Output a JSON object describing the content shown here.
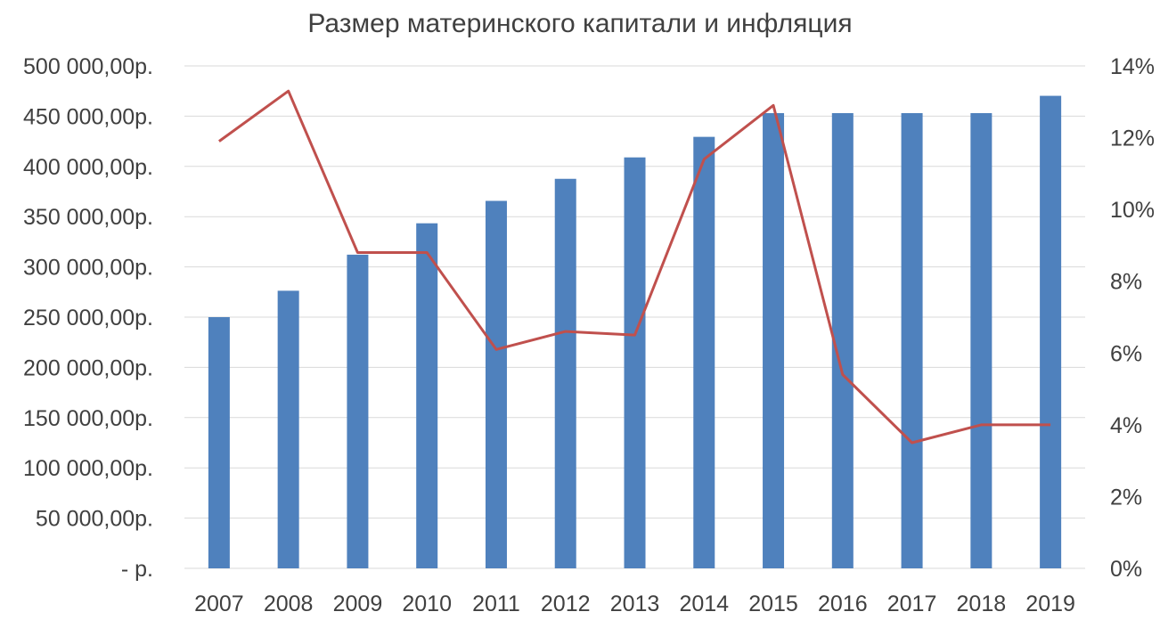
{
  "chart_data": {
    "type": "bar",
    "title": "Размер материнского капитали и инфляция",
    "categories": [
      "2007",
      "2008",
      "2009",
      "2010",
      "2011",
      "2012",
      "2013",
      "2014",
      "2015",
      "2016",
      "2017",
      "2018",
      "2019"
    ],
    "series": [
      {
        "chart_type": "bar",
        "axis": "left",
        "color": "#4f81bd",
        "values": [
          250000,
          276250,
          312162,
          343378,
          365698,
          387640,
          408961,
          429408,
          453026,
          453026,
          453026,
          453026,
          470241
        ]
      },
      {
        "chart_type": "line",
        "axis": "right",
        "color": "#c0504d",
        "values": [
          11.9,
          13.3,
          8.8,
          8.8,
          6.1,
          6.6,
          6.5,
          11.4,
          12.9,
          5.4,
          3.5,
          4.0,
          4.0
        ]
      }
    ],
    "y_left": {
      "min": 0,
      "max": 500000,
      "step": 50000,
      "tick_labels": [
        "-  р.",
        "50 000,00р.",
        "100 000,00р.",
        "150 000,00р.",
        "200 000,00р.",
        "250 000,00р.",
        "300 000,00р.",
        "350 000,00р.",
        "400 000,00р.",
        "450 000,00р.",
        "500 000,00р."
      ]
    },
    "y_right": {
      "min": 0,
      "max": 14,
      "step": 2,
      "tick_labels": [
        "0%",
        "2%",
        "4%",
        "6%",
        "8%",
        "10%",
        "12%",
        "14%"
      ]
    },
    "grid": true,
    "legend": "none"
  }
}
